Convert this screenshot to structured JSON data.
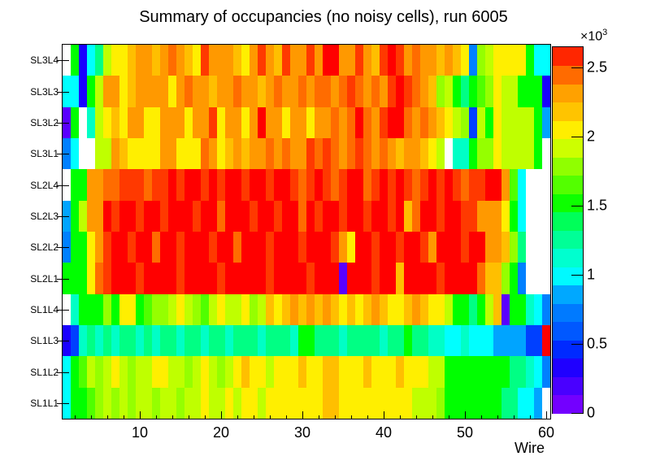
{
  "title": "Summary of occupancies (no noisy cells), run 6005",
  "x_axis": {
    "title": "Wire",
    "major_ticks": [
      10,
      20,
      30,
      40,
      50,
      60
    ],
    "minor_tick_step": 2,
    "range": [
      0.5,
      60.5
    ]
  },
  "y_axis": {
    "labels_top_to_bottom": [
      "SL3L4",
      "SL3L3",
      "SL3L2",
      "SL3L1",
      "SL2L4",
      "SL2L3",
      "SL2L2",
      "SL2L1",
      "SL1L4",
      "SL1L3",
      "SL1L2",
      "SL1L1"
    ]
  },
  "colorbar": {
    "exponent_mantissa": "×10",
    "exponent_power": "3",
    "tick_labels": [
      "0",
      "0.5",
      "1",
      "1.5",
      "2",
      "2.5"
    ],
    "tick_values": [
      0,
      0.5,
      1,
      1.5,
      2,
      2.5
    ],
    "vmin": 0,
    "vmax": 2.65,
    "n_bands": 20
  },
  "chart_data": {
    "type": "heatmap",
    "title": "Summary of occupancies (no noisy cells), run 6005",
    "xlabel": "Wire",
    "x_bins": 60,
    "x_range": [
      1,
      60
    ],
    "value_scale": "values in units of 10^3 counts, null = empty cell (white)",
    "zmin": 0,
    "zmax": 2.65,
    "palette": "root-rainbow",
    "rows_top_to_bottom": [
      {
        "label": "SL3L4",
        "values": [
          null,
          1.5,
          0.35,
          1.0,
          1.3,
          1.9,
          2.05,
          2.05,
          2.2,
          2.35,
          2.35,
          2.2,
          2.35,
          2.45,
          2.35,
          2.2,
          2.05,
          2.55,
          2.35,
          2.35,
          2.35,
          2.2,
          2.05,
          2.35,
          2.55,
          2.35,
          2.2,
          2.55,
          2.35,
          2.35,
          2.55,
          2.35,
          2.65,
          2.65,
          2.35,
          2.35,
          2.55,
          2.35,
          2.2,
          2.55,
          2.65,
          2.55,
          2.35,
          2.45,
          2.35,
          2.35,
          2.2,
          2.35,
          2.2,
          2.05,
          0.75,
          1.8,
          1.9,
          2.05,
          2.05,
          2.05,
          2.05,
          1.5,
          1.0,
          1.0
        ]
      },
      {
        "label": "SL3L3",
        "values": [
          1.0,
          1.0,
          0.35,
          1.5,
          1.9,
          2.35,
          2.35,
          2.05,
          2.2,
          2.35,
          2.35,
          2.35,
          2.35,
          2.05,
          2.35,
          2.45,
          2.35,
          2.35,
          2.2,
          2.35,
          2.35,
          2.45,
          2.35,
          2.35,
          2.2,
          2.35,
          2.45,
          2.35,
          2.35,
          2.45,
          2.35,
          2.45,
          2.45,
          2.35,
          2.45,
          2.55,
          2.45,
          2.35,
          2.45,
          2.35,
          2.55,
          2.65,
          2.55,
          2.45,
          2.35,
          2.2,
          1.8,
          1.9,
          1.5,
          1.3,
          1.5,
          1.65,
          1.8,
          2.05,
          1.9,
          1.9,
          1.5,
          1.5,
          1.5,
          0.35
        ]
      },
      {
        "label": "SL3L2",
        "values": [
          0.15,
          1.5,
          null,
          1.15,
          1.9,
          2.05,
          2.2,
          2.05,
          2.35,
          2.35,
          2.05,
          2.05,
          2.35,
          2.35,
          2.35,
          2.05,
          2.35,
          2.35,
          2.55,
          2.05,
          2.35,
          2.35,
          2.05,
          2.35,
          2.65,
          2.35,
          2.35,
          2.05,
          2.35,
          2.35,
          2.05,
          2.35,
          2.35,
          2.45,
          2.35,
          2.45,
          2.65,
          2.45,
          2.35,
          2.55,
          2.65,
          2.65,
          2.45,
          2.35,
          2.45,
          2.35,
          2.2,
          2.05,
          1.9,
          1.8,
          0.5,
          1.9,
          1.5,
          2.05,
          1.9,
          1.9,
          1.9,
          1.9,
          1.5,
          0.85
        ]
      },
      {
        "label": "SL3L1",
        "values": [
          0.75,
          1.0,
          null,
          null,
          1.9,
          1.9,
          2.35,
          2.2,
          2.05,
          2.05,
          2.05,
          2.05,
          2.35,
          2.35,
          2.05,
          2.05,
          2.05,
          2.45,
          2.35,
          2.05,
          2.2,
          2.35,
          2.2,
          2.35,
          2.35,
          2.45,
          2.35,
          2.45,
          2.35,
          2.35,
          2.55,
          2.45,
          2.55,
          2.45,
          2.35,
          2.45,
          2.55,
          2.45,
          2.35,
          2.45,
          2.35,
          2.2,
          2.35,
          2.35,
          2.2,
          2.05,
          1.9,
          null,
          1.15,
          1.15,
          1.5,
          1.8,
          1.8,
          2.05,
          1.9,
          1.9,
          1.9,
          1.9,
          1.5,
          null
        ]
      },
      {
        "label": "SL2L4",
        "values": [
          null,
          1.5,
          1.5,
          2.35,
          2.35,
          2.45,
          2.45,
          2.55,
          2.55,
          2.55,
          2.45,
          2.55,
          2.55,
          2.65,
          2.55,
          2.65,
          2.65,
          2.55,
          2.65,
          2.55,
          2.65,
          2.65,
          2.55,
          2.65,
          2.65,
          2.55,
          2.65,
          2.65,
          2.55,
          2.45,
          2.55,
          2.65,
          2.55,
          2.45,
          2.55,
          2.65,
          2.65,
          2.45,
          2.55,
          2.65,
          2.55,
          2.65,
          2.55,
          2.45,
          2.55,
          2.65,
          2.55,
          2.65,
          2.55,
          2.45,
          2.55,
          2.55,
          2.65,
          2.65,
          2.35,
          1.65,
          1.0,
          null,
          null,
          null
        ]
      },
      {
        "label": "SL2L3",
        "values": [
          0.85,
          1.5,
          1.9,
          2.35,
          2.35,
          2.65,
          2.55,
          2.65,
          2.65,
          2.55,
          2.65,
          2.65,
          2.55,
          2.65,
          2.65,
          2.65,
          2.55,
          2.65,
          2.65,
          2.45,
          2.65,
          2.65,
          2.65,
          2.55,
          2.65,
          2.65,
          2.55,
          2.65,
          2.65,
          2.45,
          2.65,
          2.55,
          2.65,
          2.65,
          2.55,
          2.65,
          2.65,
          2.55,
          2.65,
          2.65,
          2.55,
          2.65,
          2.2,
          2.45,
          2.65,
          2.65,
          2.55,
          2.65,
          2.65,
          2.55,
          2.55,
          2.35,
          2.35,
          2.35,
          2.05,
          1.5,
          1.0,
          null,
          null,
          null
        ]
      },
      {
        "label": "SL2L2",
        "values": [
          0.75,
          1.5,
          1.5,
          2.05,
          2.35,
          2.55,
          2.65,
          2.65,
          2.55,
          2.65,
          2.65,
          2.45,
          2.65,
          2.65,
          2.55,
          2.65,
          2.65,
          2.65,
          2.55,
          2.65,
          2.65,
          2.45,
          2.65,
          2.65,
          2.65,
          2.55,
          2.65,
          2.65,
          2.65,
          2.55,
          2.65,
          2.65,
          2.65,
          2.55,
          2.35,
          2.05,
          2.65,
          2.65,
          2.55,
          2.65,
          2.65,
          2.55,
          2.65,
          2.65,
          2.55,
          2.35,
          2.65,
          2.65,
          2.65,
          2.55,
          2.65,
          2.65,
          2.35,
          2.35,
          2.2,
          1.8,
          1.3,
          null,
          null,
          null
        ]
      },
      {
        "label": "SL2L1",
        "values": [
          1.5,
          1.5,
          1.5,
          2.05,
          2.45,
          2.55,
          2.65,
          2.65,
          2.65,
          2.55,
          2.65,
          2.65,
          2.65,
          2.65,
          2.55,
          2.65,
          2.65,
          2.65,
          2.65,
          2.55,
          2.65,
          2.65,
          2.65,
          2.65,
          2.65,
          2.55,
          2.65,
          2.65,
          2.65,
          2.65,
          2.55,
          2.65,
          2.65,
          2.65,
          0.15,
          2.65,
          2.65,
          2.65,
          2.55,
          2.65,
          2.65,
          2.2,
          2.65,
          2.65,
          2.65,
          2.65,
          2.55,
          2.65,
          2.65,
          2.65,
          2.65,
          2.45,
          2.2,
          2.2,
          1.8,
          1.5,
          0.75,
          null,
          null,
          null
        ]
      },
      {
        "label": "SL1L4",
        "values": [
          null,
          1.15,
          1.5,
          1.5,
          1.5,
          1.8,
          1.5,
          2.05,
          2.05,
          1.5,
          1.65,
          1.8,
          1.8,
          1.9,
          2.05,
          1.9,
          1.8,
          1.65,
          1.9,
          2.05,
          1.9,
          1.9,
          2.05,
          1.8,
          1.9,
          2.2,
          2.05,
          2.2,
          2.35,
          2.2,
          2.35,
          2.2,
          2.35,
          2.2,
          2.05,
          2.2,
          2.05,
          2.2,
          2.35,
          2.2,
          2.05,
          2.05,
          2.2,
          2.35,
          2.2,
          2.05,
          2.05,
          1.9,
          1.5,
          1.5,
          1.3,
          1.5,
          1.9,
          2.2,
          0.15,
          1.5,
          1.5,
          1.15,
          1.0,
          0.75
        ]
      },
      {
        "label": "SL1L3",
        "values": [
          0.35,
          0.5,
          1.15,
          1.3,
          1.15,
          1.3,
          1.15,
          1.3,
          1.3,
          1.15,
          1.3,
          1.15,
          1.3,
          1.3,
          1.15,
          1.3,
          1.3,
          1.15,
          1.3,
          1.3,
          1.15,
          1.3,
          1.3,
          1.3,
          1.15,
          1.3,
          1.3,
          1.3,
          1.15,
          1.5,
          1.5,
          1.3,
          1.3,
          1.3,
          1.15,
          1.3,
          1.3,
          1.3,
          1.3,
          1.15,
          1.3,
          1.3,
          1.5,
          1.3,
          1.3,
          1.15,
          1.15,
          1.0,
          1.0,
          1.15,
          1.0,
          1.0,
          1.0,
          0.85,
          0.85,
          0.85,
          0.85,
          0.5,
          0.5,
          2.65
        ]
      },
      {
        "label": "SL1L2",
        "values": [
          1.0,
          1.5,
          1.65,
          1.9,
          1.8,
          1.9,
          2.05,
          1.9,
          1.8,
          1.9,
          1.9,
          2.05,
          2.05,
          1.9,
          1.9,
          1.8,
          1.9,
          2.05,
          1.9,
          1.8,
          1.9,
          2.05,
          2.2,
          2.05,
          2.05,
          1.9,
          2.05,
          2.05,
          2.05,
          2.2,
          2.05,
          2.05,
          2.2,
          2.2,
          2.05,
          2.05,
          2.05,
          2.2,
          2.05,
          2.05,
          2.05,
          2.2,
          2.05,
          2.05,
          2.05,
          1.9,
          1.9,
          1.5,
          1.5,
          1.5,
          1.5,
          1.5,
          1.5,
          1.5,
          1.5,
          1.3,
          1.3,
          1.15,
          1.0,
          0.75
        ]
      },
      {
        "label": "SL1L1",
        "values": [
          1.0,
          1.5,
          1.5,
          1.65,
          1.8,
          1.9,
          1.8,
          1.9,
          1.8,
          1.9,
          1.9,
          1.8,
          1.9,
          1.9,
          1.8,
          1.9,
          1.9,
          2.05,
          1.9,
          1.9,
          2.05,
          1.9,
          2.05,
          2.05,
          1.9,
          2.05,
          2.05,
          2.05,
          2.05,
          2.05,
          2.05,
          2.05,
          2.2,
          2.2,
          2.05,
          2.05,
          2.05,
          2.05,
          2.05,
          2.05,
          2.05,
          2.05,
          2.05,
          1.9,
          1.9,
          1.9,
          1.8,
          1.5,
          1.5,
          1.5,
          1.5,
          1.5,
          1.5,
          1.5,
          1.3,
          1.3,
          1.0,
          1.0,
          0.85,
          null
        ]
      }
    ]
  }
}
